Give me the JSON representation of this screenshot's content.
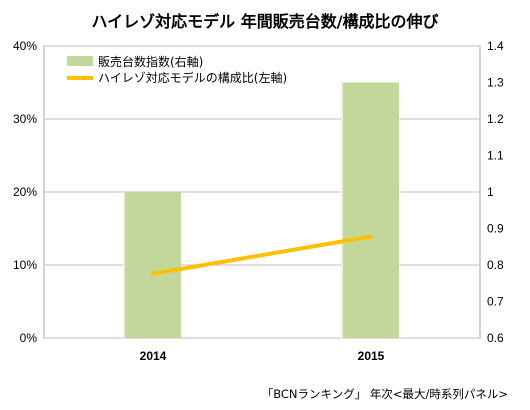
{
  "chart_data": {
    "type": "bar",
    "title": "ハイレゾ対応モデル 年間販売台数/構成比の伸び",
    "categories": [
      "2014",
      "2015"
    ],
    "series": [
      {
        "name": "販売台数指数(右軸)",
        "kind": "bar",
        "axis": "right",
        "color": "#c4d79b",
        "values": [
          1.0,
          1.3
        ]
      },
      {
        "name": "ハイレゾ対応モデルの構成比(左軸)",
        "kind": "line",
        "axis": "left",
        "color": "#ffc000",
        "values": [
          8.8,
          13.9
        ]
      }
    ],
    "left_axis": {
      "ticks": [
        "0%",
        "10%",
        "20%",
        "30%",
        "40%"
      ],
      "ylim": [
        0,
        40
      ],
      "unit": "%"
    },
    "right_axis": {
      "ticks": [
        "0.6",
        "0.7",
        "0.8",
        "0.9",
        "1",
        "1.1",
        "1.2",
        "1.3",
        "1.4"
      ],
      "ylim": [
        0.6,
        1.4
      ]
    },
    "grid": true,
    "legend_position": "top-left",
    "source": "「BCNランキング」 年次<最大/時系列パネル>"
  }
}
